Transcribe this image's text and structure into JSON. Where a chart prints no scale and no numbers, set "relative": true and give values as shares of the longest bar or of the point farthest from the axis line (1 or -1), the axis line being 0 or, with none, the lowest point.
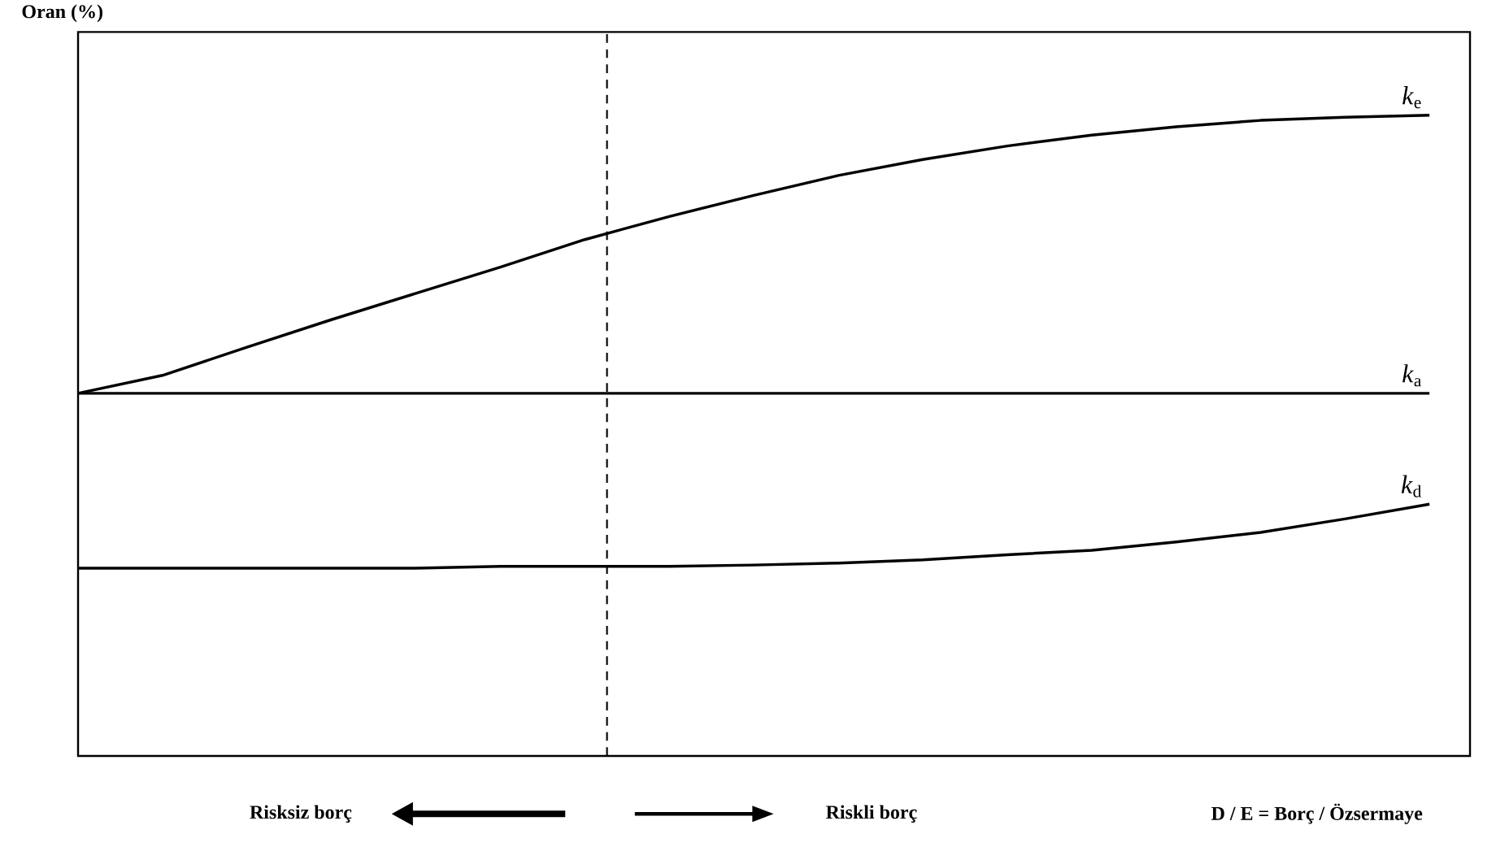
{
  "chart_data": {
    "type": "line",
    "relative": true,
    "ylabel": "Oran (%)",
    "xlabel": "D / E = Borç / Özsermaye",
    "legend": false,
    "categories": [
      null,
      null,
      null,
      null,
      null,
      null,
      null,
      null,
      null,
      null,
      null,
      null,
      null,
      null,
      null,
      null,
      null
    ],
    "series": [
      {
        "name": "*k*$_{e}$",
        "color": "#000000",
        "values": [
          0.566,
          0.594,
          0.638,
          0.681,
          0.722,
          0.763,
          0.806,
          0.842,
          0.875,
          0.906,
          0.931,
          0.952,
          0.969,
          0.982,
          0.992,
          0.997,
          1
        ]
      },
      {
        "name": "*k*$_{a}$",
        "color": "#000000",
        "values": [
          0.566,
          0.566,
          0.566,
          0.566,
          0.566,
          0.566,
          0.566,
          0.566,
          0.566,
          0.566,
          0.566,
          0.566,
          0.566,
          0.566,
          0.566,
          0.566,
          0.566
        ]
      },
      {
        "name": "*k*$_{d}$",
        "color": "#000000",
        "values": [
          0.293,
          0.293,
          0.293,
          0.293,
          0.293,
          0.296,
          0.296,
          0.296,
          0.298,
          0.301,
          0.306,
          0.314,
          0.321,
          0.334,
          0.349,
          0.37,
          0.393
        ]
      }
    ],
    "annotations": [
      "Risksiz borç",
      "Riskli borç"
    ]
  }
}
